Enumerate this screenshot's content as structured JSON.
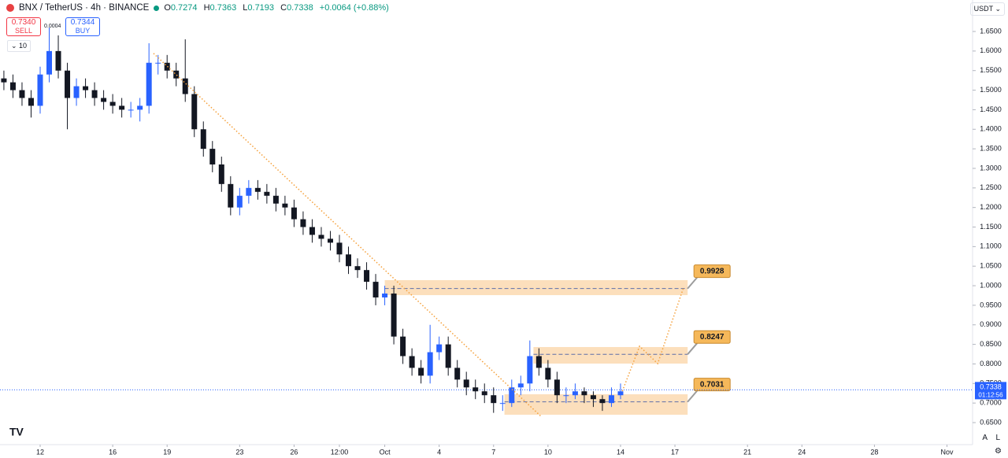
{
  "header": {
    "symbol": "BNX / TetherUS · 4h · BINANCE",
    "ohlc": [
      {
        "label": "O",
        "value": "0.7274"
      },
      {
        "label": "H",
        "value": "0.7363"
      },
      {
        "label": "L",
        "value": "0.7193"
      },
      {
        "label": "C",
        "value": "0.7338"
      }
    ],
    "change": "+0.0064 (+0.88%)",
    "sell_price": "0.7340",
    "sell_label": "SELL",
    "spread": "0.0004",
    "buy_price": "0.7344",
    "buy_label": "BUY",
    "volume_toggle": "10",
    "currency": "USDT",
    "scale_auto": "A",
    "scale_log": "L"
  },
  "chart_data": {
    "type": "candlestick",
    "up_color": "#2962ff",
    "down_color": "#131722",
    "x": [
      -2,
      -1.5,
      -1,
      -0.5,
      0,
      0.5,
      1,
      1.5,
      2,
      2.5,
      3,
      3.5,
      4,
      4.5,
      5,
      5.5,
      6,
      6.5,
      7,
      7.5,
      8,
      8.5,
      9,
      9.5,
      10,
      10.5,
      11,
      11.5,
      12,
      12.5,
      13,
      13.5,
      14,
      14.5,
      15,
      15.5,
      16,
      16.5,
      17,
      17.5,
      18,
      18.5,
      19,
      19.5,
      20,
      20.5,
      21,
      21.5,
      22,
      22.5,
      23,
      23.5,
      24,
      24.5,
      25,
      25.5,
      26,
      26.5,
      27,
      27.5,
      28,
      28.5,
      29,
      29.5,
      30,
      30.5,
      31,
      31.5,
      32
    ],
    "open": [
      1.53,
      1.52,
      1.5,
      1.48,
      1.46,
      1.54,
      1.6,
      1.55,
      1.48,
      1.51,
      1.5,
      1.48,
      1.47,
      1.46,
      1.45,
      1.45,
      1.46,
      1.57,
      1.57,
      1.55,
      1.53,
      1.49,
      1.4,
      1.35,
      1.31,
      1.26,
      1.2,
      1.23,
      1.25,
      1.24,
      1.23,
      1.21,
      1.2,
      1.17,
      1.15,
      1.13,
      1.12,
      1.11,
      1.08,
      1.05,
      1.04,
      1.01,
      0.97,
      0.98,
      0.87,
      0.82,
      0.79,
      0.77,
      0.83,
      0.85,
      0.79,
      0.76,
      0.74,
      0.73,
      0.72,
      0.7,
      0.7,
      0.74,
      0.75,
      0.82,
      0.79,
      0.76,
      0.72,
      0.72,
      0.73,
      0.72,
      0.71,
      0.7,
      0.72
    ],
    "high": [
      1.55,
      1.54,
      1.52,
      1.5,
      1.56,
      1.66,
      1.64,
      1.57,
      1.53,
      1.53,
      1.52,
      1.5,
      1.49,
      1.48,
      1.47,
      1.48,
      1.62,
      1.59,
      1.59,
      1.57,
      1.63,
      1.51,
      1.42,
      1.37,
      1.33,
      1.28,
      1.25,
      1.27,
      1.27,
      1.26,
      1.25,
      1.23,
      1.22,
      1.19,
      1.17,
      1.15,
      1.14,
      1.13,
      1.1,
      1.07,
      1.06,
      1.03,
      1.0,
      1.0,
      0.89,
      0.84,
      0.81,
      0.9,
      0.87,
      0.87,
      0.81,
      0.78,
      0.76,
      0.75,
      0.74,
      0.72,
      0.76,
      0.77,
      0.86,
      0.84,
      0.81,
      0.78,
      0.74,
      0.75,
      0.74,
      0.73,
      0.72,
      0.74,
      0.75
    ],
    "low": [
      1.5,
      1.48,
      1.46,
      1.43,
      1.44,
      1.52,
      1.53,
      1.4,
      1.46,
      1.48,
      1.46,
      1.45,
      1.44,
      1.43,
      1.43,
      1.42,
      1.44,
      1.54,
      1.53,
      1.51,
      1.47,
      1.38,
      1.33,
      1.29,
      1.24,
      1.18,
      1.18,
      1.21,
      1.22,
      1.21,
      1.19,
      1.18,
      1.15,
      1.13,
      1.11,
      1.1,
      1.09,
      1.06,
      1.03,
      1.02,
      0.99,
      0.95,
      0.95,
      0.85,
      0.8,
      0.77,
      0.75,
      0.75,
      0.81,
      0.77,
      0.74,
      0.72,
      0.71,
      0.7,
      0.675,
      0.68,
      0.69,
      0.72,
      0.73,
      0.77,
      0.74,
      0.7,
      0.7,
      0.71,
      0.7,
      0.69,
      0.68,
      0.69,
      0.71
    ],
    "close": [
      1.52,
      1.5,
      1.48,
      1.46,
      1.54,
      1.6,
      1.55,
      1.48,
      1.51,
      1.5,
      1.48,
      1.47,
      1.46,
      1.45,
      1.45,
      1.46,
      1.57,
      1.57,
      1.55,
      1.53,
      1.49,
      1.4,
      1.35,
      1.31,
      1.26,
      1.2,
      1.23,
      1.25,
      1.24,
      1.23,
      1.21,
      1.2,
      1.17,
      1.15,
      1.13,
      1.12,
      1.11,
      1.08,
      1.05,
      1.04,
      1.01,
      0.97,
      0.98,
      0.87,
      0.82,
      0.79,
      0.77,
      0.83,
      0.85,
      0.79,
      0.76,
      0.74,
      0.73,
      0.72,
      0.7,
      0.7,
      0.74,
      0.75,
      0.82,
      0.79,
      0.76,
      0.72,
      0.72,
      0.73,
      0.72,
      0.71,
      0.7,
      0.72,
      0.73
    ],
    "xlim": [
      -2.214,
      51.41
    ],
    "ylim": [
      0.5937,
      1.7305
    ],
    "xticks": [
      {
        "value": 0,
        "label": "12"
      },
      {
        "value": 4,
        "label": "16"
      },
      {
        "value": 7,
        "label": "19"
      },
      {
        "value": 11,
        "label": "23"
      },
      {
        "value": 14,
        "label": "26"
      },
      {
        "value": 16.5,
        "label": "12:00"
      },
      {
        "value": 19,
        "label": "Oct"
      },
      {
        "value": 22,
        "label": "4"
      },
      {
        "value": 25,
        "label": "7"
      },
      {
        "value": 28,
        "label": "10"
      },
      {
        "value": 32,
        "label": "14"
      },
      {
        "value": 35,
        "label": "17"
      },
      {
        "value": 39,
        "label": "21"
      },
      {
        "value": 42,
        "label": "24"
      },
      {
        "value": 46,
        "label": "28"
      },
      {
        "value": 50,
        "label": "Nov"
      }
    ],
    "yticks": [
      {
        "value": 0.65,
        "label": "0.6500"
      },
      {
        "value": 0.7,
        "label": "0.7000"
      },
      {
        "value": 0.75,
        "label": "0.7500"
      },
      {
        "value": 0.8,
        "label": "0.8000"
      },
      {
        "value": 0.85,
        "label": "0.8500"
      },
      {
        "value": 0.9,
        "label": "0.9000"
      },
      {
        "value": 0.95,
        "label": "0.9500"
      },
      {
        "value": 1.0,
        "label": "1.0000"
      },
      {
        "value": 1.05,
        "label": "1.0500"
      },
      {
        "value": 1.1,
        "label": "1.1000"
      },
      {
        "value": 1.15,
        "label": "1.1500"
      },
      {
        "value": 1.2,
        "label": "1.2000"
      },
      {
        "value": 1.25,
        "label": "1.2500"
      },
      {
        "value": 1.3,
        "label": "1.3000"
      },
      {
        "value": 1.35,
        "label": "1.3500"
      },
      {
        "value": 1.4,
        "label": "1.4000"
      },
      {
        "value": 1.45,
        "label": "1.4500"
      },
      {
        "value": 1.5,
        "label": "1.5000"
      },
      {
        "value": 1.55,
        "label": "1.5500"
      },
      {
        "value": 1.6,
        "label": "1.6000"
      },
      {
        "value": 1.65,
        "label": "1.6500"
      }
    ],
    "zones": [
      {
        "value": 0.9928,
        "top": 1.0142,
        "bottom": 0.9759,
        "x": [
          19.0,
          35.7
        ]
      },
      {
        "value": 0.8247,
        "top": 0.8432,
        "bottom": 0.8009,
        "x": [
          27.2,
          35.7
        ]
      },
      {
        "value": 0.7031,
        "top": 0.7224,
        "bottom": 0.6701,
        "x": [
          25.6,
          35.7
        ]
      }
    ],
    "lines": [
      {
        "x": [
          6.25,
          27.66
        ],
        "y": [
          1.594,
          0.664
        ]
      },
      {
        "x": [
          32.1,
          33.05,
          34.05,
          35.48
        ],
        "y": [
          0.7305,
          0.8452,
          0.8009,
          0.9961
        ]
      }
    ],
    "zone_color": "#fbd4a6",
    "line_color": "#f5a13c",
    "last_price": 0.7338,
    "countdown": "01:12:56",
    "last_color": "#2962ff"
  }
}
